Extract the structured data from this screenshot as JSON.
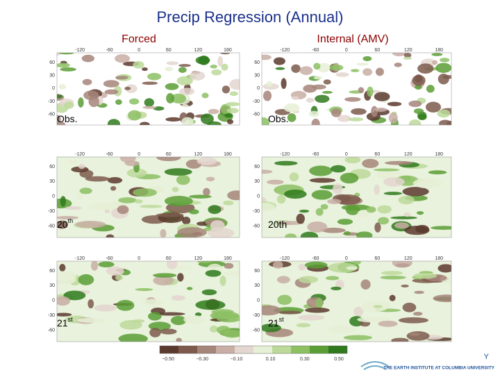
{
  "title": "Precip Regression (Annual)",
  "lon_ticks": [
    "-120",
    "-60",
    "0",
    "60",
    "120",
    "180"
  ],
  "lat_ticks": [
    "60",
    "30",
    "0",
    "-30",
    "-60"
  ],
  "columns": [
    {
      "title": "Forced",
      "panels": [
        {
          "label": "Obs."
        },
        {
          "label": "20",
          "sup": "th"
        },
        {
          "label": "21",
          "sup": "st"
        }
      ]
    },
    {
      "title": "Internal (AMV)",
      "panels": [
        {
          "label": "Obs."
        },
        {
          "label": "20th"
        },
        {
          "label": "21",
          "sup": "st"
        }
      ]
    }
  ],
  "colorbar": {
    "ticks": [
      "−0.50",
      "−0.30",
      "−0.10",
      "0.10",
      "0.30",
      "0.50"
    ],
    "colors": [
      "#5a3a2e",
      "#7d5a4c",
      "#a6857a",
      "#c8aea5",
      "#e4d6d0",
      "#e6f0d6",
      "#bcd99a",
      "#8cc063",
      "#5a9e35",
      "#2f7a1c"
    ]
  },
  "footer": "THE EARTH INSTITUTE AT COLUMBIA UNIVERSITY"
}
